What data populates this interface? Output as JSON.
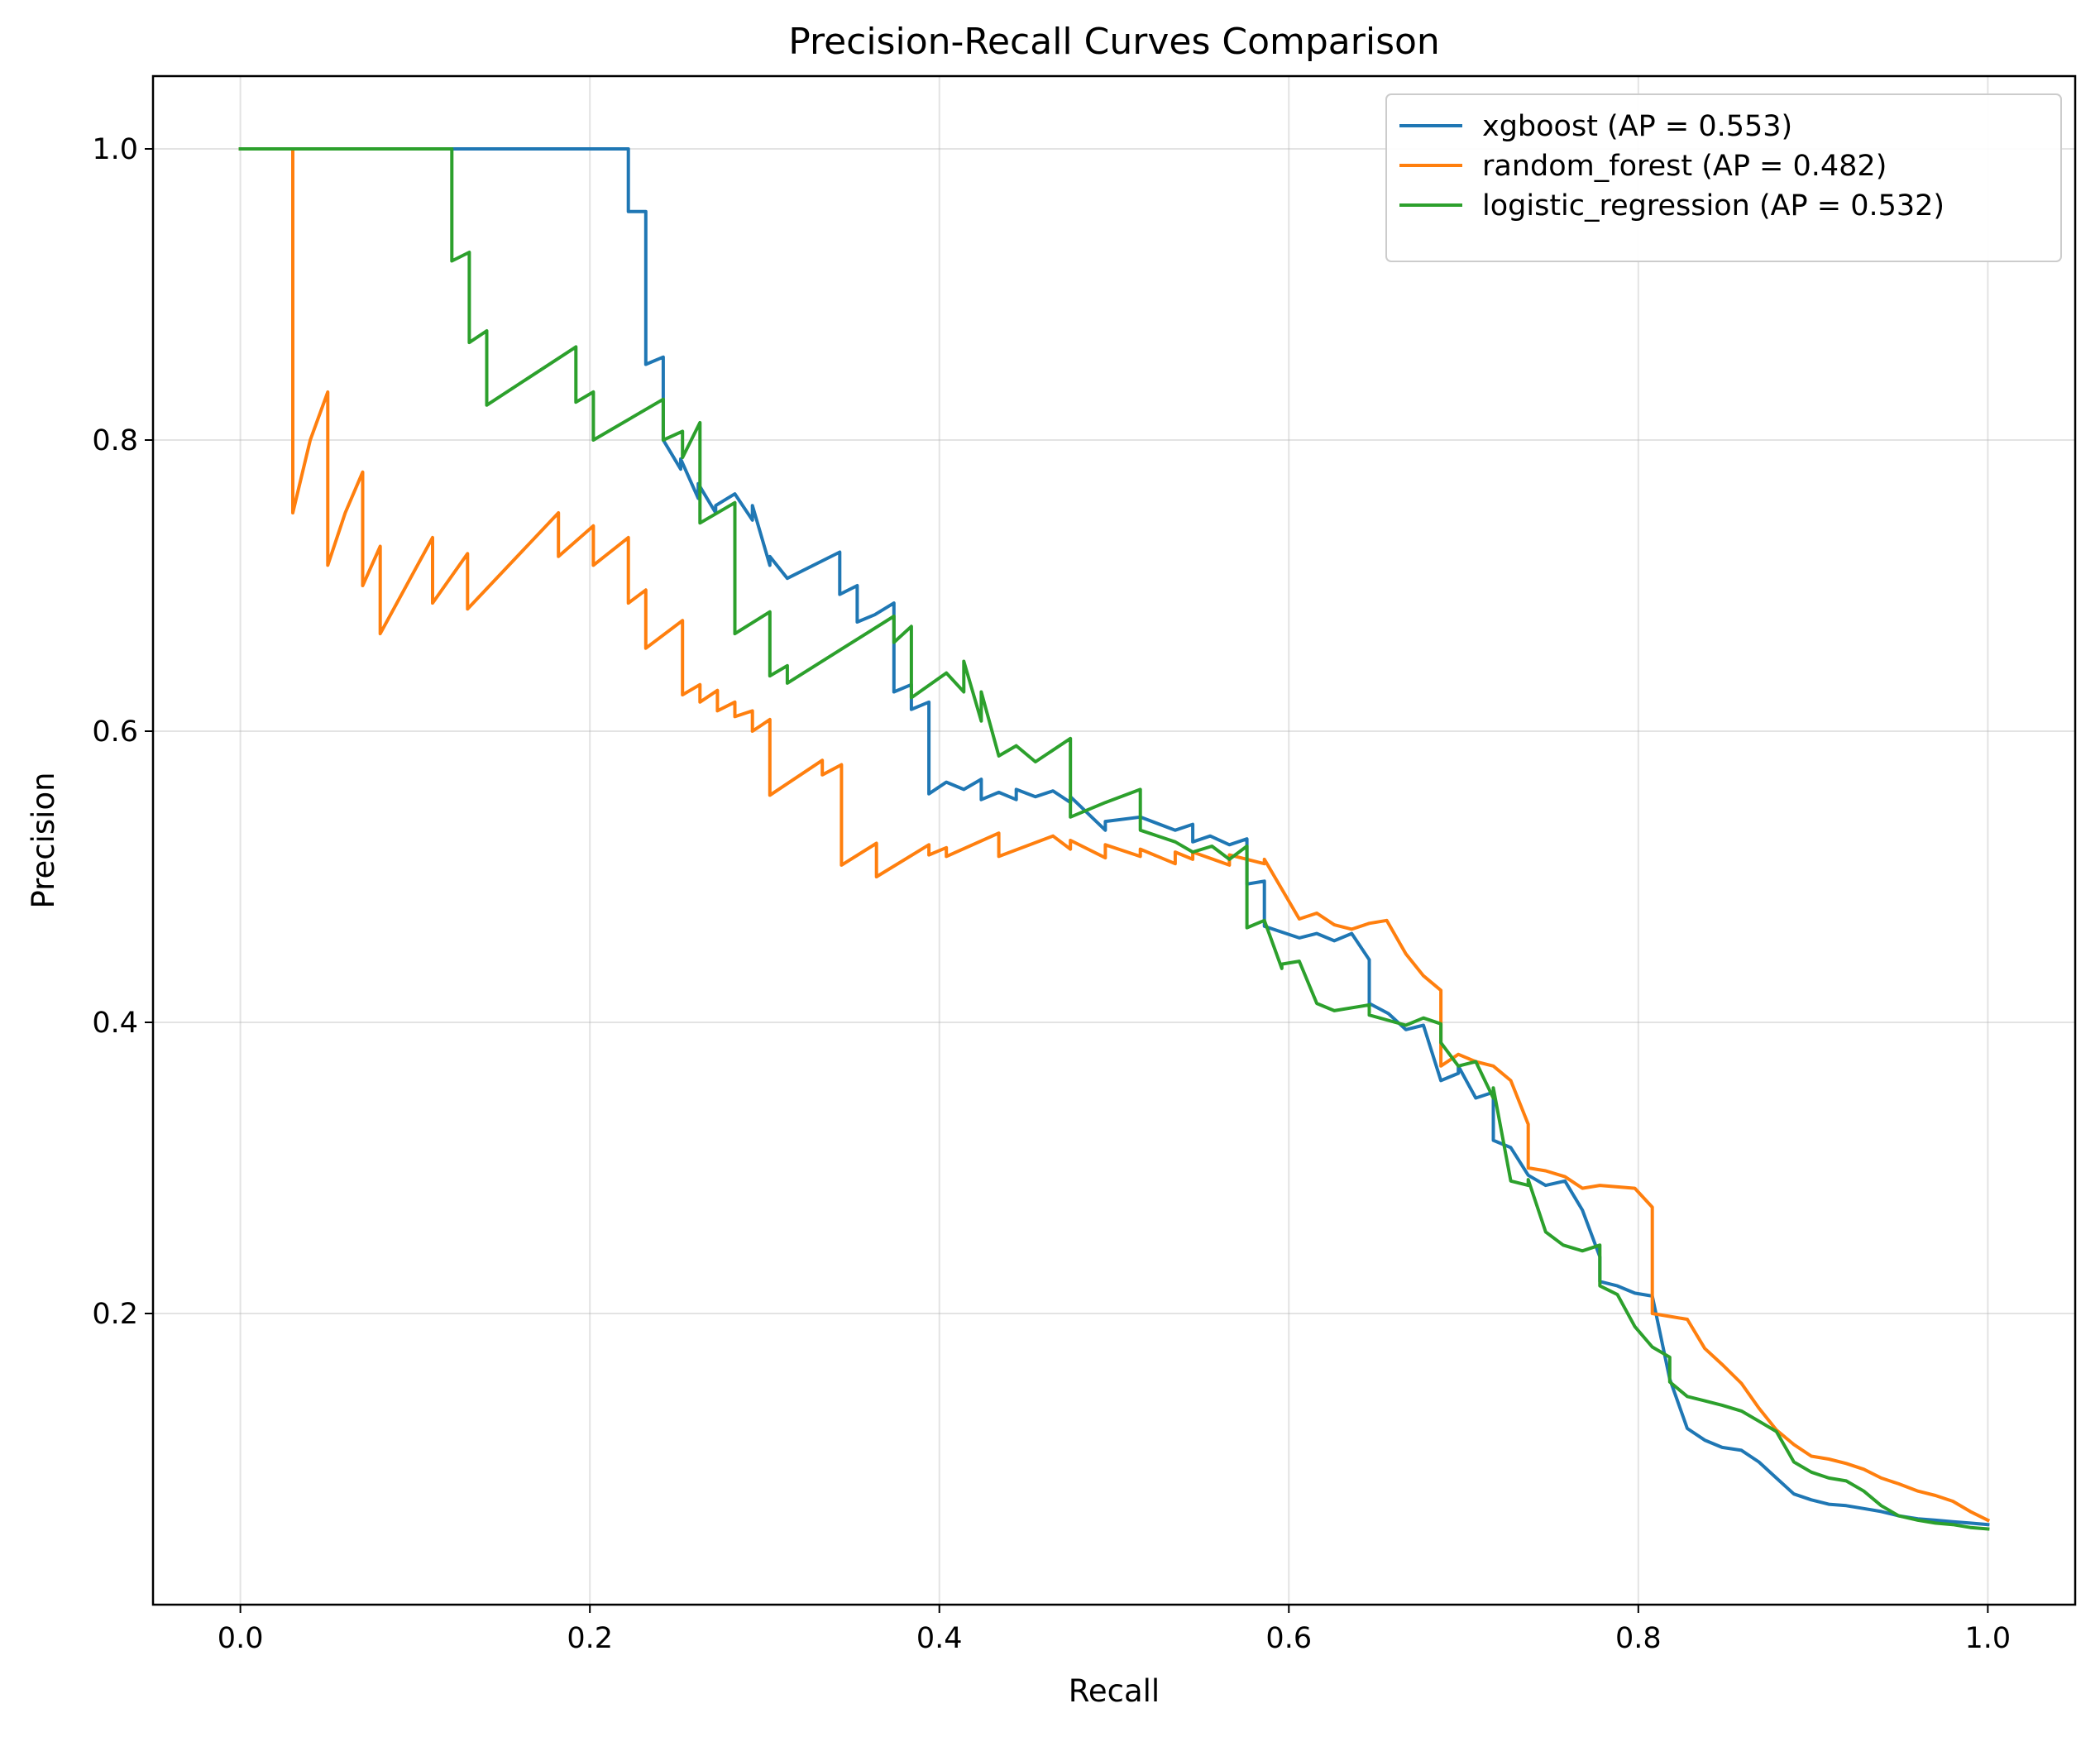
{
  "chart_data": {
    "type": "line",
    "title": "Precision-Recall Curves Comparison",
    "xlabel": "Recall",
    "ylabel": "Precision",
    "xlim": [
      -0.05,
      1.05
    ],
    "ylim": [
      0.0,
      1.05
    ],
    "xticks": [
      0.0,
      0.2,
      0.4,
      0.6,
      0.8,
      1.0
    ],
    "xtick_labels": [
      "0.0",
      "0.2",
      "0.4",
      "0.6",
      "0.8",
      "1.0"
    ],
    "yticks": [
      0.2,
      0.4,
      0.6,
      0.8,
      1.0
    ],
    "ytick_labels": [
      "0.2",
      "0.4",
      "0.6",
      "0.8",
      "1.0"
    ],
    "grid": true,
    "legend_position": "top-right",
    "series": [
      {
        "name": "xgboost (AP = 0.553)",
        "color": "#1f77b4",
        "x": [
          0.0,
          0.222,
          0.222,
          0.232,
          0.232,
          0.232,
          0.242,
          0.242,
          0.252,
          0.252,
          0.262,
          0.262,
          0.272,
          0.272,
          0.283,
          0.293,
          0.293,
          0.303,
          0.303,
          0.313,
          0.343,
          0.343,
          0.353,
          0.353,
          0.363,
          0.374,
          0.374,
          0.384,
          0.384,
          0.394,
          0.394,
          0.404,
          0.414,
          0.424,
          0.424,
          0.434,
          0.444,
          0.444,
          0.455,
          0.465,
          0.475,
          0.475,
          0.495,
          0.495,
          0.515,
          0.535,
          0.545,
          0.545,
          0.555,
          0.566,
          0.576,
          0.576,
          0.586,
          0.586,
          0.596,
          0.606,
          0.616,
          0.626,
          0.636,
          0.646,
          0.646,
          0.657,
          0.667,
          0.677,
          0.687,
          0.697,
          0.697,
          0.707,
          0.717,
          0.717,
          0.727,
          0.737,
          0.747,
          0.758,
          0.768,
          0.778,
          0.778,
          0.788,
          0.798,
          0.808,
          0.818,
          0.828,
          0.838,
          0.848,
          0.859,
          0.869,
          0.879,
          0.889,
          0.899,
          0.909,
          0.919,
          0.929,
          0.939,
          0.949,
          0.96,
          0.97,
          0.98,
          0.99,
          1.0
        ],
        "y": [
          1.0,
          1.0,
          0.957,
          0.957,
          0.88,
          0.852,
          0.857,
          0.8,
          0.78,
          0.787,
          0.76,
          0.77,
          0.75,
          0.755,
          0.763,
          0.745,
          0.755,
          0.714,
          0.72,
          0.705,
          0.723,
          0.694,
          0.7,
          0.675,
          0.68,
          0.688,
          0.627,
          0.632,
          0.615,
          0.62,
          0.557,
          0.565,
          0.56,
          0.567,
          0.553,
          0.558,
          0.553,
          0.56,
          0.555,
          0.559,
          0.551,
          0.555,
          0.532,
          0.538,
          0.541,
          0.532,
          0.536,
          0.524,
          0.528,
          0.522,
          0.526,
          0.495,
          0.497,
          0.466,
          0.462,
          0.458,
          0.461,
          0.456,
          0.461,
          0.443,
          0.413,
          0.406,
          0.395,
          0.398,
          0.36,
          0.365,
          0.37,
          0.348,
          0.352,
          0.319,
          0.314,
          0.295,
          0.288,
          0.291,
          0.271,
          0.239,
          0.222,
          0.219,
          0.214,
          0.212,
          0.155,
          0.121,
          0.113,
          0.108,
          0.106,
          0.098,
          0.087,
          0.076,
          0.072,
          0.069,
          0.068,
          0.066,
          0.064,
          0.061,
          0.059,
          0.058,
          0.057,
          0.056,
          0.055
        ]
      },
      {
        "name": "random_forest (AP = 0.482)",
        "color": "#ff7f0e",
        "x": [
          0.0,
          0.03,
          0.03,
          0.04,
          0.05,
          0.05,
          0.06,
          0.07,
          0.07,
          0.08,
          0.08,
          0.11,
          0.11,
          0.13,
          0.13,
          0.182,
          0.182,
          0.202,
          0.202,
          0.222,
          0.222,
          0.232,
          0.232,
          0.253,
          0.253,
          0.263,
          0.263,
          0.273,
          0.273,
          0.283,
          0.283,
          0.293,
          0.293,
          0.303,
          0.303,
          0.333,
          0.333,
          0.344,
          0.344,
          0.364,
          0.364,
          0.394,
          0.394,
          0.404,
          0.404,
          0.434,
          0.434,
          0.465,
          0.475,
          0.475,
          0.495,
          0.495,
          0.515,
          0.515,
          0.535,
          0.535,
          0.545,
          0.545,
          0.566,
          0.566,
          0.586,
          0.586,
          0.606,
          0.616,
          0.626,
          0.636,
          0.646,
          0.656,
          0.667,
          0.677,
          0.687,
          0.687,
          0.697,
          0.707,
          0.717,
          0.727,
          0.737,
          0.737,
          0.747,
          0.758,
          0.768,
          0.778,
          0.798,
          0.808,
          0.808,
          0.818,
          0.828,
          0.838,
          0.848,
          0.859,
          0.869,
          0.879,
          0.889,
          0.899,
          0.909,
          0.919,
          0.929,
          0.939,
          0.949,
          0.96,
          0.97,
          0.98,
          0.99,
          1.0
        ],
        "y": [
          1.0,
          1.0,
          0.75,
          0.8,
          0.833,
          0.714,
          0.75,
          0.778,
          0.7,
          0.727,
          0.667,
          0.733,
          0.688,
          0.722,
          0.684,
          0.75,
          0.72,
          0.741,
          0.714,
          0.733,
          0.688,
          0.697,
          0.657,
          0.676,
          0.625,
          0.632,
          0.62,
          0.628,
          0.614,
          0.62,
          0.61,
          0.614,
          0.6,
          0.608,
          0.556,
          0.58,
          0.57,
          0.577,
          0.508,
          0.523,
          0.5,
          0.522,
          0.515,
          0.52,
          0.514,
          0.53,
          0.514,
          0.528,
          0.519,
          0.525,
          0.513,
          0.522,
          0.514,
          0.519,
          0.509,
          0.517,
          0.512,
          0.517,
          0.508,
          0.515,
          0.509,
          0.512,
          0.471,
          0.475,
          0.467,
          0.464,
          0.468,
          0.47,
          0.447,
          0.432,
          0.422,
          0.37,
          0.378,
          0.373,
          0.37,
          0.36,
          0.33,
          0.3,
          0.298,
          0.294,
          0.286,
          0.288,
          0.286,
          0.273,
          0.2,
          0.198,
          0.196,
          0.176,
          0.165,
          0.152,
          0.135,
          0.12,
          0.11,
          0.102,
          0.1,
          0.097,
          0.093,
          0.087,
          0.083,
          0.078,
          0.075,
          0.071,
          0.064,
          0.058
        ]
      },
      {
        "name": "logistic_regression (AP = 0.532)",
        "color": "#2ca02c",
        "x": [
          0.0,
          0.121,
          0.121,
          0.131,
          0.131,
          0.141,
          0.141,
          0.192,
          0.192,
          0.202,
          0.202,
          0.242,
          0.242,
          0.253,
          0.253,
          0.263,
          0.263,
          0.283,
          0.283,
          0.303,
          0.303,
          0.313,
          0.313,
          0.374,
          0.374,
          0.384,
          0.384,
          0.404,
          0.414,
          0.414,
          0.424,
          0.424,
          0.434,
          0.444,
          0.455,
          0.475,
          0.475,
          0.495,
          0.515,
          0.515,
          0.535,
          0.545,
          0.556,
          0.566,
          0.576,
          0.576,
          0.586,
          0.596,
          0.596,
          0.606,
          0.616,
          0.626,
          0.646,
          0.646,
          0.667,
          0.677,
          0.687,
          0.687,
          0.697,
          0.707,
          0.717,
          0.717,
          0.727,
          0.737,
          0.737,
          0.747,
          0.757,
          0.768,
          0.778,
          0.778,
          0.788,
          0.798,
          0.808,
          0.818,
          0.818,
          0.828,
          0.838,
          0.848,
          0.859,
          0.869,
          0.879,
          0.889,
          0.899,
          0.909,
          0.919,
          0.929,
          0.939,
          0.949,
          0.96,
          0.97,
          0.98,
          0.99,
          1.0
        ],
        "y": [
          1.0,
          1.0,
          0.923,
          0.929,
          0.867,
          0.875,
          0.824,
          0.864,
          0.826,
          0.833,
          0.8,
          0.828,
          0.8,
          0.806,
          0.788,
          0.812,
          0.743,
          0.757,
          0.667,
          0.682,
          0.638,
          0.645,
          0.633,
          0.679,
          0.661,
          0.672,
          0.623,
          0.64,
          0.627,
          0.648,
          0.607,
          0.627,
          0.583,
          0.59,
          0.579,
          0.595,
          0.541,
          0.551,
          0.56,
          0.532,
          0.524,
          0.517,
          0.521,
          0.512,
          0.521,
          0.465,
          0.47,
          0.437,
          0.44,
          0.442,
          0.413,
          0.408,
          0.412,
          0.405,
          0.398,
          0.403,
          0.399,
          0.386,
          0.37,
          0.373,
          0.348,
          0.355,
          0.291,
          0.288,
          0.292,
          0.256,
          0.247,
          0.243,
          0.247,
          0.219,
          0.213,
          0.191,
          0.177,
          0.17,
          0.153,
          0.143,
          0.14,
          0.137,
          0.133,
          0.126,
          0.119,
          0.098,
          0.091,
          0.087,
          0.085,
          0.078,
          0.068,
          0.061,
          0.058,
          0.056,
          0.055,
          0.053,
          0.052
        ]
      }
    ]
  }
}
